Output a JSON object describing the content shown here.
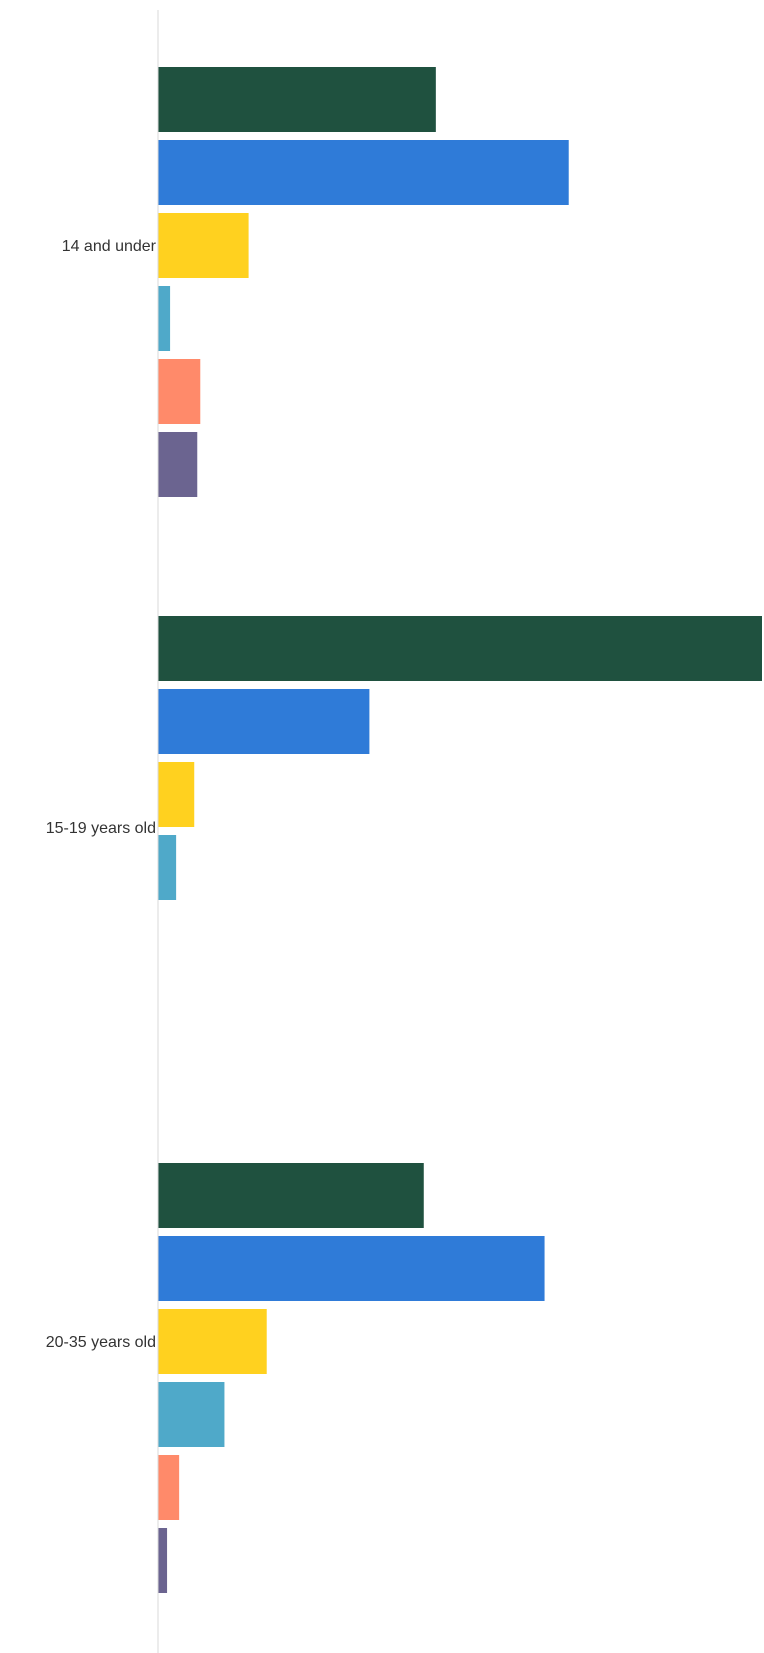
{
  "chart_data": {
    "type": "bar",
    "orientation": "horizontal",
    "title": "",
    "xlabel": "",
    "ylabel": "",
    "categories": [
      "14 and under",
      "15-19 years old",
      "20-35 years old"
    ],
    "xlim": [
      0,
      100
    ],
    "grid": false,
    "legend": "none",
    "series": [
      {
        "values": [
          46,
          100,
          44
        ],
        "color": "#1f513f"
      },
      {
        "values": [
          68,
          35,
          64
        ],
        "color": "#2f7bd8"
      },
      {
        "values": [
          15,
          6,
          18
        ],
        "color": "#ffd11f"
      },
      {
        "values": [
          2,
          3,
          11
        ],
        "color": "#4fa9c9"
      },
      {
        "values": [
          7,
          null,
          3.5
        ],
        "color": "#ff8a6a"
      },
      {
        "values": [
          6.5,
          null,
          1.5
        ],
        "color": "#6b6490"
      }
    ]
  }
}
